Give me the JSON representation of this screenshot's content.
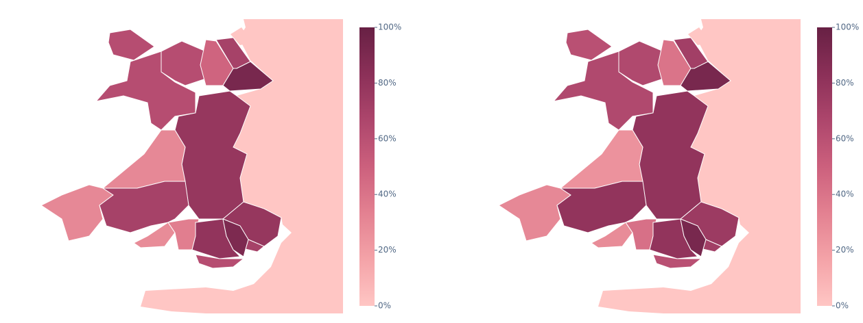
{
  "chart_data": [
    {
      "type": "choropleth",
      "values": [
        62,
        62,
        62,
        48,
        70,
        92,
        78,
        30,
        30,
        70,
        28,
        35,
        80,
        62,
        78,
        70,
        90
      ],
      "colorscale": [
        "#ffc6c4",
        "#f4a3a8",
        "#e38191",
        "#cc607d",
        "#ad466c",
        "#8b3058",
        "#672044"
      ],
      "clim": [
        0,
        100
      ],
      "cticks": [
        {
          "value": 0,
          "label": "0%"
        },
        {
          "value": 20,
          "label": "20%"
        },
        {
          "value": 40,
          "label": "40%"
        },
        {
          "value": 60,
          "label": "60%"
        },
        {
          "value": 80,
          "label": "80%"
        },
        {
          "value": 100,
          "label": "100%"
        }
      ]
    },
    {
      "type": "choropleth",
      "values": [
        60,
        65,
        65,
        40,
        72,
        92,
        80,
        25,
        30,
        80,
        28,
        42,
        80,
        60,
        75,
        72,
        92
      ],
      "colorscale": [
        "#ffc6c4",
        "#f4a3a8",
        "#e38191",
        "#cc607d",
        "#ad466c",
        "#8b3058",
        "#672044"
      ],
      "clim": [
        0,
        100
      ],
      "cticks": [
        {
          "value": 0,
          "label": "0%"
        },
        {
          "value": 20,
          "label": "20%"
        },
        {
          "value": 40,
          "label": "40%"
        },
        {
          "value": 60,
          "label": "60%"
        },
        {
          "value": 80,
          "label": "80%"
        },
        {
          "value": 100,
          "label": "100%"
        }
      ]
    }
  ]
}
